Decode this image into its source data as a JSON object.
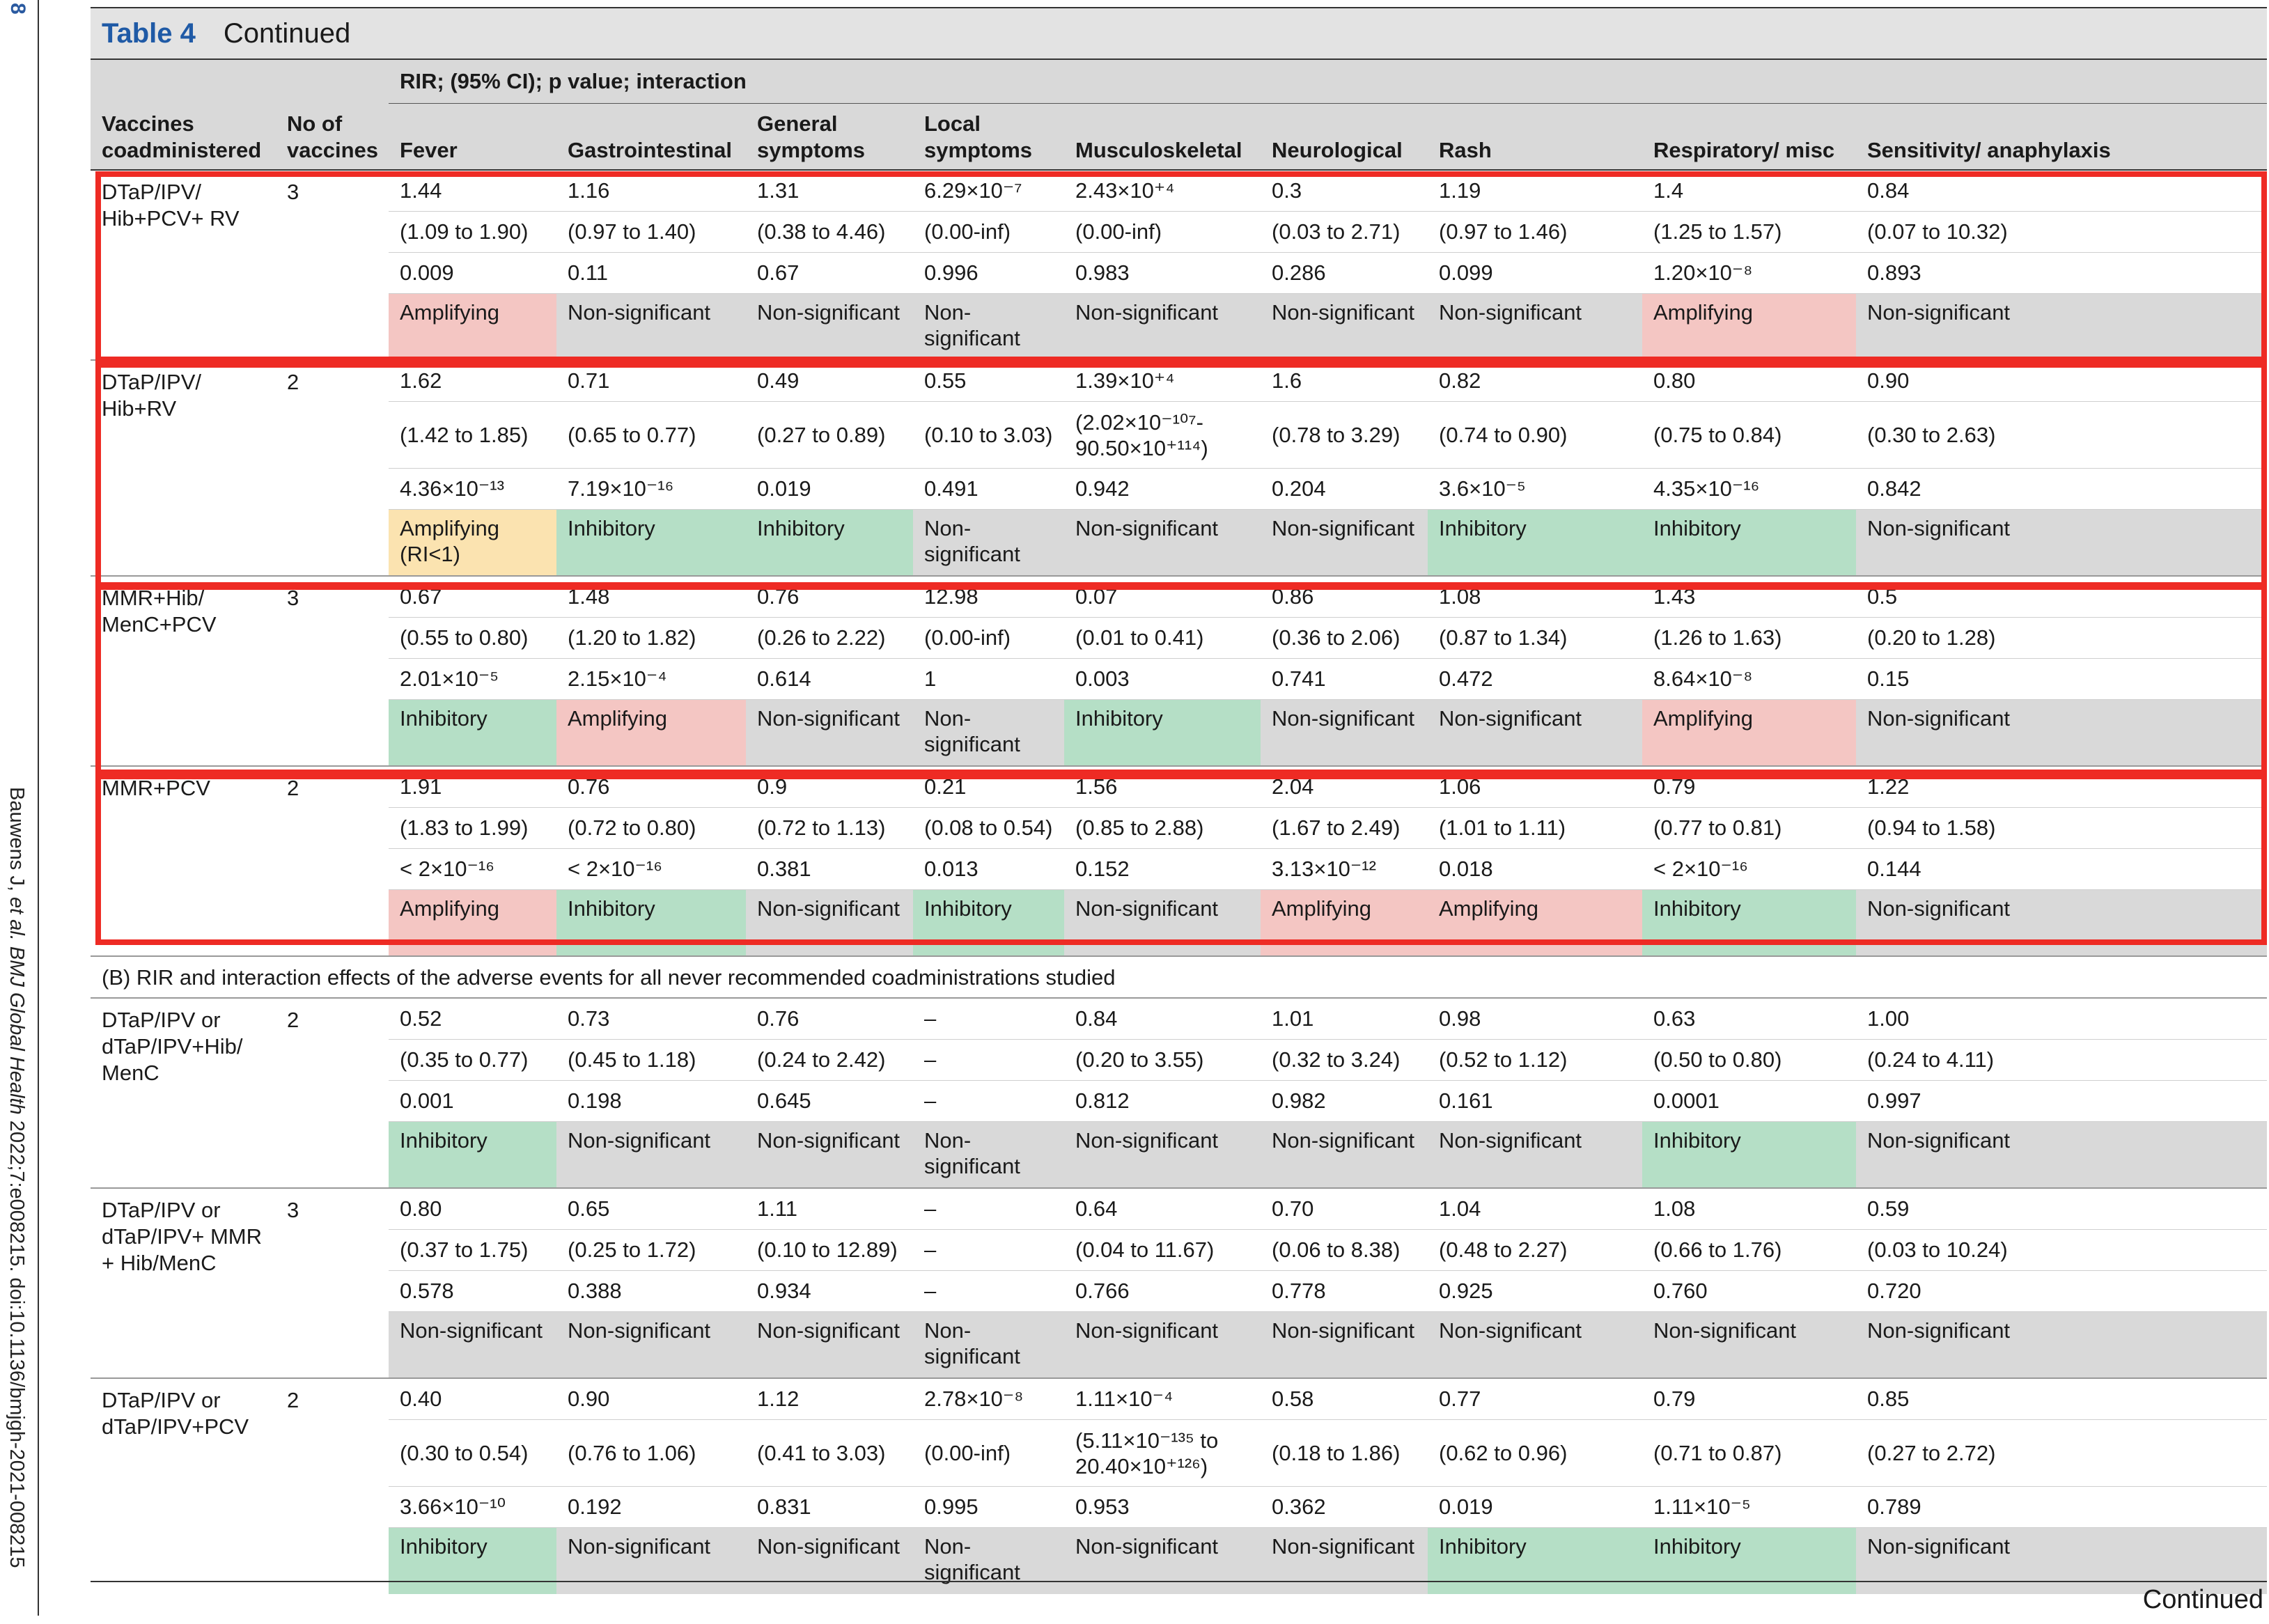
{
  "page_number": "8",
  "citation": {
    "authors": "Bauwens J, ",
    "etal": "et al. BMJ Global Health",
    "rest": " 2022;7:e008215. doi:10.1136/bmjgh-2021-008215"
  },
  "table": {
    "number": "Table 4",
    "title": "Continued",
    "group_header": "RIR; (95% CI); p value; interaction",
    "columns": [
      "Vaccines coadministered",
      "No of vaccines",
      "Fever",
      "Gastrointestinal",
      "General symptoms",
      "Local symptoms",
      "Musculoskeletal",
      "Neurological",
      "Rash",
      "Respiratory/ misc",
      "Sensitivity/ anaphylaxis"
    ],
    "section_b_title": "(B) RIR and interaction effects of the adverse events for all never recommended coadministrations studied",
    "footer": "Continued"
  },
  "groups": [
    {
      "name": "DTaP/IPV/ Hib+PCV+ RV",
      "n": "3",
      "rir": [
        "1.44",
        "1.16",
        "1.31",
        "6.29×10⁻⁷",
        "2.43×10⁺⁴",
        "0.3",
        "1.19",
        "1.4",
        "0.84"
      ],
      "ci": [
        "(1.09 to 1.90)",
        "(0.97 to 1.40)",
        "(0.38 to 4.46)",
        "(0.00-inf)",
        "(0.00-inf)",
        "(0.03 to 2.71)",
        "(0.97 to 1.46)",
        "(1.25 to 1.57)",
        "(0.07 to 10.32)"
      ],
      "p": [
        "0.009",
        "0.11",
        "0.67",
        "0.996",
        "0.983",
        "0.286",
        "0.099",
        "1.20×10⁻⁸",
        "0.893"
      ],
      "interaction": [
        "Amplifying",
        "Non-significant",
        "Non-significant",
        "Non- significant",
        "Non-significant",
        "Non-significant",
        "Non-significant",
        "Amplifying",
        "Non-significant"
      ],
      "classes": [
        "amp",
        "ns",
        "ns",
        "ns",
        "ns",
        "ns",
        "ns",
        "amp",
        "ns"
      ]
    },
    {
      "name": "DTaP/IPV/ Hib+RV",
      "n": "2",
      "rir": [
        "1.62",
        "0.71",
        "0.49",
        "0.55",
        "1.39×10⁺⁴",
        "1.6",
        "0.82",
        "0.80",
        "0.90"
      ],
      "ci": [
        "(1.42 to 1.85)",
        "(0.65 to 0.77)",
        "(0.27 to 0.89)",
        "(0.10 to 3.03)",
        "(2.02×10⁻¹⁰⁷- 90.50×10⁺¹¹⁴)",
        "(0.78 to 3.29)",
        "(0.74 to 0.90)",
        "(0.75 to 0.84)",
        "(0.30 to 2.63)"
      ],
      "p": [
        "4.36×10⁻¹³",
        "7.19×10⁻¹⁶",
        "0.019",
        "0.491",
        "0.942",
        "0.204",
        "3.6×10⁻⁵",
        "4.35×10⁻¹⁶",
        "0.842"
      ],
      "interaction": [
        "Amplifying (RI<1)",
        "Inhibitory",
        "Inhibitory",
        "Non- significant",
        "Non-significant",
        "Non-significant",
        "Inhibitory",
        "Inhibitory",
        "Non-significant"
      ],
      "classes": [
        "ampw",
        "inh",
        "inh",
        "ns",
        "ns",
        "ns",
        "inh",
        "inh",
        "ns"
      ]
    },
    {
      "name": "MMR+Hib/ MenC+PCV",
      "n": "3",
      "rir": [
        "0.67",
        "1.48",
        "0.76",
        "12.98",
        "0.07",
        "0.86",
        "1.08",
        "1.43",
        "0.5"
      ],
      "ci": [
        "(0.55 to 0.80)",
        "(1.20 to 1.82)",
        "(0.26 to 2.22)",
        "(0.00-inf)",
        "(0.01 to 0.41)",
        "(0.36 to 2.06)",
        "(0.87 to 1.34)",
        "(1.26 to 1.63)",
        "(0.20 to 1.28)"
      ],
      "p": [
        "2.01×10⁻⁵",
        "2.15×10⁻⁴",
        "0.614",
        "1",
        "0.003",
        "0.741",
        "0.472",
        "8.64×10⁻⁸",
        "0.15"
      ],
      "interaction": [
        "Inhibitory",
        "Amplifying",
        "Non-significant",
        "Non- significant",
        "Inhibitory",
        "Non-significant",
        "Non-significant",
        "Amplifying",
        "Non-significant"
      ],
      "classes": [
        "inh",
        "amp",
        "ns",
        "ns",
        "inh",
        "ns",
        "ns",
        "amp",
        "ns"
      ]
    },
    {
      "name": "MMR+PCV",
      "n": "2",
      "rir": [
        "1.91",
        "0.76",
        "0.9",
        "0.21",
        "1.56",
        "2.04",
        "1.06",
        "0.79",
        "1.22"
      ],
      "ci": [
        "(1.83 to 1.99)",
        "(0.72 to 0.80)",
        "(0.72 to 1.13)",
        "(0.08 to 0.54)",
        "(0.85 to 2.88)",
        "(1.67 to 2.49)",
        "(1.01 to 1.11)",
        "(0.77 to 0.81)",
        "(0.94 to 1.58)"
      ],
      "p": [
        "< 2×10⁻¹⁶",
        "< 2×10⁻¹⁶",
        "0.381",
        "0.013",
        "0.152",
        "3.13×10⁻¹²",
        "0.018",
        "< 2×10⁻¹⁶",
        "0.144"
      ],
      "interaction": [
        "Amplifying",
        "Inhibitory",
        "Non-significant",
        "Inhibitory",
        "Non-significant",
        "Amplifying",
        "Amplifying",
        "Inhibitory",
        "Non-significant"
      ],
      "classes": [
        "amp",
        "inh",
        "ns",
        "inh",
        "ns",
        "amp",
        "amp",
        "inh",
        "ns"
      ]
    }
  ],
  "groups_b": [
    {
      "name": "DTaP/IPV or dTaP/IPV+Hib/ MenC",
      "n": "2",
      "rir": [
        "0.52",
        "0.73",
        "0.76",
        "–",
        "0.84",
        "1.01",
        "0.98",
        "0.63",
        "1.00"
      ],
      "ci": [
        "(0.35 to 0.77)",
        "(0.45 to 1.18)",
        "(0.24 to 2.42)",
        "–",
        "(0.20 to 3.55)",
        "(0.32 to 3.24)",
        "(0.52 to 1.12)",
        "(0.50 to 0.80)",
        "(0.24 to 4.11)"
      ],
      "p": [
        "0.001",
        "0.198",
        "0.645",
        "–",
        "0.812",
        "0.982",
        "0.161",
        "0.0001",
        "0.997"
      ],
      "interaction": [
        "Inhibitory",
        "Non-significant",
        "Non-significant",
        "Non- significant",
        "Non-significant",
        "Non-significant",
        "Non-significant",
        "Inhibitory",
        "Non-significant"
      ],
      "classes": [
        "inh",
        "ns",
        "ns",
        "ns",
        "ns",
        "ns",
        "ns",
        "inh",
        "ns"
      ]
    },
    {
      "name": "DTaP/IPV or dTaP/IPV+ MMR + Hib/MenC",
      "n": "3",
      "rir": [
        "0.80",
        "0.65",
        "1.11",
        "–",
        "0.64",
        "0.70",
        "1.04",
        "1.08",
        "0.59"
      ],
      "ci": [
        "(0.37 to 1.75)",
        "(0.25 to 1.72)",
        "(0.10 to 12.89)",
        "–",
        "(0.04 to 11.67)",
        "(0.06 to 8.38)",
        "(0.48 to 2.27)",
        "(0.66 to 1.76)",
        "(0.03 to 10.24)"
      ],
      "p": [
        "0.578",
        "0.388",
        "0.934",
        "–",
        "0.766",
        "0.778",
        "0.925",
        "0.760",
        "0.720"
      ],
      "interaction": [
        "Non-significant",
        "Non-significant",
        "Non-significant",
        "Non- significant",
        "Non-significant",
        "Non-significant",
        "Non-significant",
        "Non-significant",
        "Non-significant"
      ],
      "classes": [
        "ns",
        "ns",
        "ns",
        "ns",
        "ns",
        "ns",
        "ns",
        "ns",
        "ns"
      ]
    },
    {
      "name": "DTaP/IPV or dTaP/IPV+PCV",
      "n": "2",
      "rir": [
        "0.40",
        "0.90",
        "1.12",
        "2.78×10⁻⁸",
        "1.11×10⁻⁴",
        "0.58",
        "0.77",
        "0.79",
        "0.85"
      ],
      "ci": [
        "(0.30 to 0.54)",
        "(0.76 to 1.06)",
        "(0.41 to 3.03)",
        "(0.00-inf)",
        "(5.11×10⁻¹³⁵ to 20.40×10⁺¹²⁶)",
        "(0.18 to 1.86)",
        "(0.62 to 0.96)",
        "(0.71 to 0.87)",
        "(0.27 to 2.72)"
      ],
      "p": [
        "3.66×10⁻¹⁰",
        "0.192",
        "0.831",
        "0.995",
        "0.953",
        "0.362",
        "0.019",
        "1.11×10⁻⁵",
        "0.789"
      ],
      "interaction": [
        "Inhibitory",
        "Non-significant",
        "Non-significant",
        "Non- significant",
        "Non-significant",
        "Non-significant",
        "Inhibitory",
        "Inhibitory",
        "Non-significant"
      ],
      "classes": [
        "inh",
        "ns",
        "ns",
        "ns",
        "ns",
        "ns",
        "inh",
        "inh",
        "ns"
      ]
    }
  ],
  "colors": {
    "amplifying": "#f4c6c3",
    "inhibitory": "#b5dfc6",
    "amplifying_ri_lt_1": "#fbe3b0",
    "non_significant": "#d9d9d9",
    "highlight_box": "#ee2b24"
  }
}
